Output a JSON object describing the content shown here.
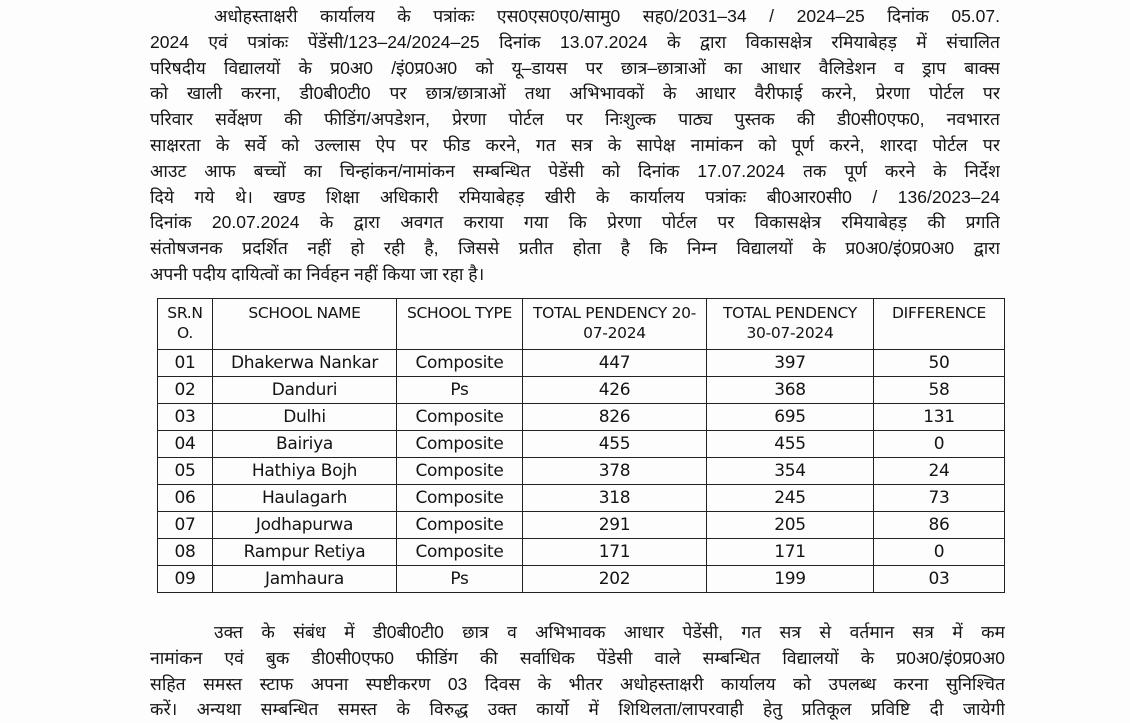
{
  "intro_paragraph": [
    "अधोहस्ताक्षरी कार्यालय के पत्रांकः एस0एस0ए0/सामु0 सह0/2031–34 / 2024–25 दिनांक 05.07.",
    "2024 एवं पत्रांकः पेंडेंसी/123–24/2024–25 दिनांक 13.07.2024 के द्वारा विकासक्षेत्र रमियाबेहड़ में संचालित",
    "परिषदीय विद्यालयों के प्र0अ0 /इं0प्र0अ0 को यू–डायस पर छात्र–छात्राओं का आधार वैलिडेशन व ड्राप बाक्स",
    "को खाली करना, डी0बी0टी0 पर छात्र/छात्राओं तथा अभिभावकों के आधार वैरीफाई करने, प्रेरणा पोर्टल पर",
    "परिवार सर्वेक्षण की फीडिंग/अपडेशन, प्रेरणा पोर्टल पर निःशुल्क पाठ्य पुस्तक की डी0सी0एफ0, नवभारत",
    "साक्षरता के सर्वे को उल्लास ऐप पर फीड करने, गत सत्र के सापेक्ष नामांकन को पूर्ण करने, शारदा पोर्टल पर",
    "आउट आफ बच्चों का चिन्हांकन/नामांकन सम्बन्धित पेडेंसी को दिनांक 17.07.2024 तक पूर्ण करने के निर्देश",
    "दिये गये थे। खण्ड शिक्षा अधिकारी रमियाबेहड़ खीरी के कार्यालय पत्रांकः बी0आर0सी0 / 136/2023–24",
    "दिनांक 20.07.2024 के द्वारा अवगत कराया गया कि प्रेरणा पोर्टल पर विकासक्षेत्र रमियाबेहड़ की प्रगति",
    "संतोषजनक प्रदर्शित नहीं हो रही है, जिससे प्रतीत होता है कि निम्न विद्यालयों के प्र0अ0/इं0प्र0अ0 द्वारा",
    "अपनी पदीय दायित्वों का निर्वहन नहीं किया जा रहा है।"
  ],
  "table": {
    "headers": [
      "SR.N O.",
      "SCHOOL NAME",
      "SCHOOL TYPE",
      "TOTAL PENDENCY 20-07-2024",
      "TOTAL PENDENCY 30-07-2024",
      "DIFFERENCE"
    ],
    "rows": [
      [
        "01",
        "Dhakerwa Nankar",
        "Composite",
        "447",
        "397",
        "50"
      ],
      [
        "02",
        "Danduri",
        "Ps",
        "426",
        "368",
        "58"
      ],
      [
        "03",
        "Dulhi",
        "Composite",
        "826",
        "695",
        "131"
      ],
      [
        "04",
        "Bairiya",
        "Composite",
        "455",
        "455",
        "0"
      ],
      [
        "05",
        "Hathiya Bojh",
        "Composite",
        "378",
        "354",
        "24"
      ],
      [
        "06",
        "Haulagarh",
        "Composite",
        "318",
        "245",
        "73"
      ],
      [
        "07",
        "Jodhapurwa",
        "Composite",
        "291",
        "205",
        "86"
      ],
      [
        "08",
        "Rampur Retiya",
        "Composite",
        "171",
        "171",
        "0"
      ],
      [
        "09",
        "Jamhaura",
        "Ps",
        "202",
        "199",
        "03"
      ]
    ]
  },
  "closing_paragraph": [
    "उक्त के संबंध में डी0बी0टी0 छात्र व अभिभावक आधार पेडेंसी, गत सत्र से वर्तमान सत्र में कम",
    "नामांकन एवं बुक डी0सी0एफ0 फीडिंग की सर्वाधिक पेंडेसी वाले सम्बन्धित विद्यालयों के प्र0अ0/इं0प्र0अ0",
    "सहित समस्त स्टाफ अपना स्पष्टीकरण 03 दिवस के भीतर अधोहस्ताक्षरी कार्यालय को उपलब्ध करना सुनिश्चित",
    "करें। अन्यथा सम्बन्धित समस्त के विरुद्ध उक्त कार्यो में शिथिलता/लापरवाही हेतु प्रतिकूल प्रविष्टि दी जायेगी"
  ]
}
